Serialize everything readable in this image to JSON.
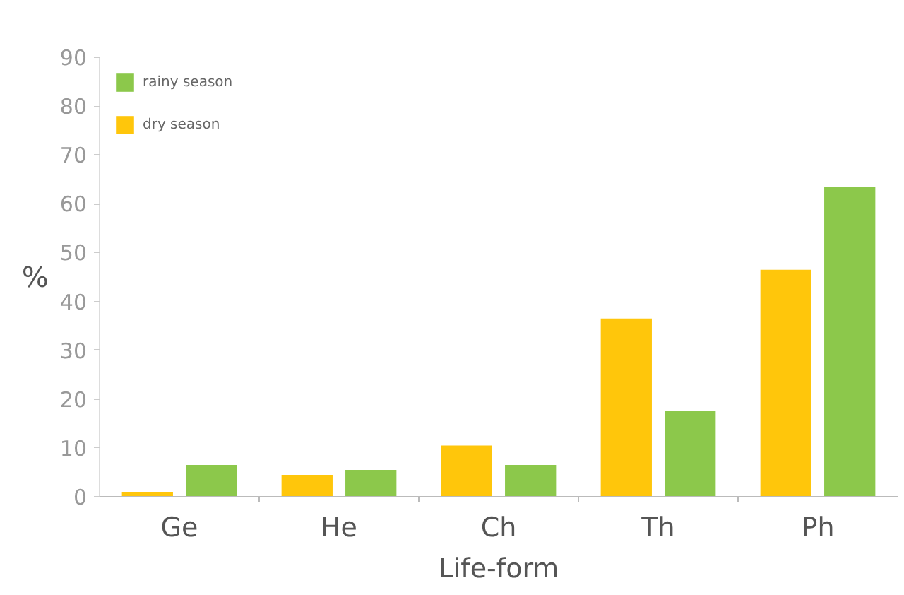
{
  "chart_data": {
    "type": "bar",
    "xlabel": "Life-form",
    "ylabel": "%",
    "categories": [
      "Ge",
      "He",
      "Ch",
      "Th",
      "Ph"
    ],
    "series": [
      {
        "name": "dry season",
        "color": "#ffc60b",
        "values": [
          1,
          4.5,
          10.5,
          36.5,
          46.5
        ]
      },
      {
        "name": "rainy season",
        "color": "#8cc84b",
        "values": [
          6.5,
          5.5,
          6.5,
          17.5,
          63.5
        ]
      }
    ],
    "ylim": [
      0,
      90
    ],
    "yticks": [
      0,
      10,
      20,
      30,
      40,
      50,
      60,
      70,
      80,
      90
    ],
    "grid": false,
    "legend": "top left"
  }
}
